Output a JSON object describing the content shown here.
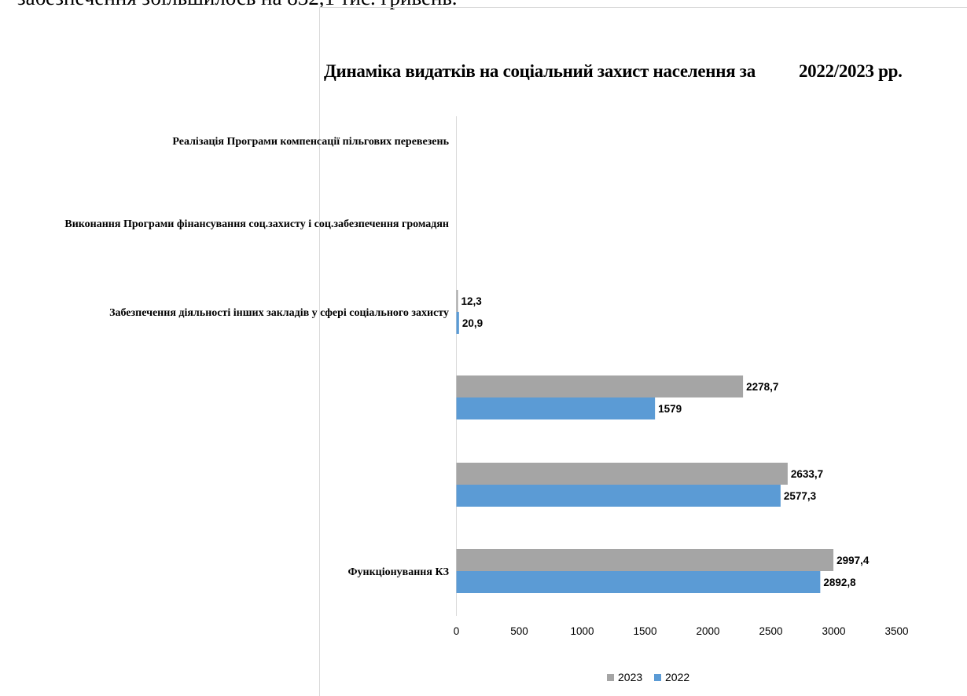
{
  "doc": {
    "partial_text": "забезпечення збільшилось на 832,1 тис. гривень."
  },
  "chart_data": {
    "type": "bar",
    "orientation": "horizontal",
    "title": "Динаміка видатків на соціальний захист населення за",
    "title_years": "2022/2023 рр.",
    "categories": [
      "Функціонування КЗ",
      "",
      "",
      "Забезпечення діяльності інших закладів у сфері соціального захисту",
      "Виконання Програми фінансування соц.захисту і соц.забезпечення громадян",
      "Реалізація Програми компенсації пільгових перевезень"
    ],
    "series": [
      {
        "name": "2022",
        "color": "#5b9bd5",
        "values": [
          2892.8,
          2577.3,
          1579,
          20.9,
          null,
          null
        ],
        "labels": [
          "2892,8",
          "2577,3",
          "1579",
          "20,9",
          "",
          ""
        ]
      },
      {
        "name": "2023",
        "color": "#a5a5a5",
        "values": [
          2997.4,
          2633.7,
          2278.7,
          12.3,
          null,
          null
        ],
        "labels": [
          "2997,4",
          "2633,7",
          "2278,7",
          "12,3",
          "",
          ""
        ]
      }
    ],
    "xlim": [
      0,
      3500
    ],
    "xticks": [
      "0",
      "500",
      "1000",
      "1500",
      "2000",
      "2500",
      "3000",
      "3500"
    ],
    "legend": {
      "position": "bottom",
      "order": [
        "2023",
        "2022"
      ]
    },
    "grid": false
  }
}
